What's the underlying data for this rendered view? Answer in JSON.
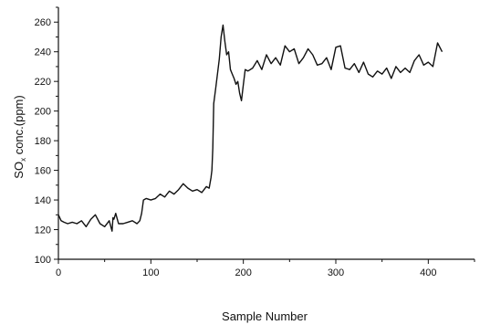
{
  "chart_data": {
    "type": "line",
    "title": "",
    "xlabel": "Sample Number",
    "ylabel_main": "SO",
    "ylabel_sub": "x",
    "ylabel_rest": " conc.(ppm)",
    "xlim": [
      0,
      450
    ],
    "ylim": [
      100,
      270
    ],
    "xticks": [
      0,
      100,
      200,
      300,
      400
    ],
    "yticks": [
      100,
      120,
      140,
      160,
      180,
      200,
      220,
      240,
      260
    ],
    "grid": false,
    "legend": "none",
    "line_color": "#111111",
    "series": [
      {
        "x": [
          0,
          3,
          6,
          10,
          15,
          20,
          25,
          30,
          35,
          40,
          45,
          50,
          55,
          58,
          59,
          60,
          62,
          65,
          70,
          75,
          80,
          85,
          88,
          90,
          92,
          95,
          100,
          105,
          110,
          115,
          120,
          125,
          130,
          135,
          140,
          145,
          150,
          155,
          160,
          163,
          165,
          166,
          167,
          168,
          170,
          172,
          174,
          176,
          178,
          180,
          182,
          184,
          186,
          188,
          190,
          192,
          194,
          196,
          198,
          200,
          202,
          205,
          210,
          215,
          220,
          225,
          230,
          235,
          240,
          245,
          250,
          255,
          260,
          265,
          270,
          275,
          280,
          285,
          290,
          295,
          300,
          305,
          310,
          315,
          320,
          325,
          330,
          335,
          340,
          345,
          350,
          355,
          360,
          365,
          370,
          375,
          380,
          385,
          390,
          395,
          400,
          405,
          410,
          415
        ],
        "y": [
          130,
          126,
          125,
          124,
          125,
          124,
          126,
          122,
          127,
          130,
          124,
          122,
          126,
          119,
          128,
          127,
          131,
          124,
          124,
          125,
          126,
          124,
          126,
          131,
          140,
          141,
          140,
          141,
          144,
          142,
          146,
          144,
          147,
          151,
          148,
          146,
          147,
          145,
          149,
          148,
          155,
          160,
          175,
          205,
          215,
          225,
          235,
          250,
          258,
          247,
          238,
          240,
          228,
          225,
          222,
          218,
          220,
          212,
          207,
          218,
          228,
          227,
          229,
          234,
          228,
          238,
          232,
          236,
          231,
          244,
          240,
          242,
          232,
          236,
          242,
          238,
          231,
          232,
          236,
          228,
          243,
          244,
          229,
          228,
          232,
          226,
          233,
          225,
          223,
          227,
          225,
          229,
          222,
          230,
          226,
          229,
          226,
          234,
          238,
          231,
          233,
          230,
          246,
          240
        ]
      }
    ]
  }
}
